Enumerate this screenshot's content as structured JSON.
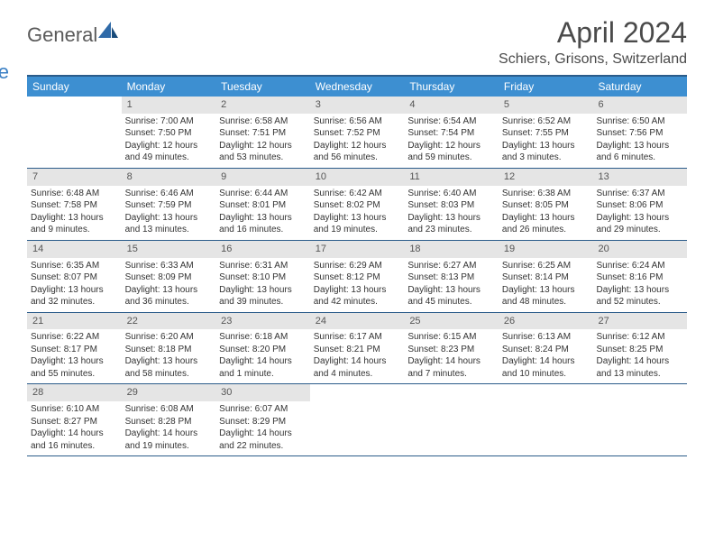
{
  "logo": {
    "text1": "General",
    "text2": "Blue"
  },
  "title": "April 2024",
  "location": "Schiers, Grisons, Switzerland",
  "weekdays": [
    "Sunday",
    "Monday",
    "Tuesday",
    "Wednesday",
    "Thursday",
    "Friday",
    "Saturday"
  ],
  "colors": {
    "header_bar": "#3d8fd1",
    "border": "#2b5c8a",
    "daynum_bg": "#e5e5e5",
    "text": "#333333",
    "logo_blue": "#3a7fc4",
    "logo_gray": "#5a5a5a",
    "bg": "#ffffff"
  },
  "weeks": [
    [
      {
        "n": "",
        "empty": true
      },
      {
        "n": "1",
        "sr": "Sunrise: 7:00 AM",
        "ss": "Sunset: 7:50 PM",
        "d1": "Daylight: 12 hours",
        "d2": "and 49 minutes."
      },
      {
        "n": "2",
        "sr": "Sunrise: 6:58 AM",
        "ss": "Sunset: 7:51 PM",
        "d1": "Daylight: 12 hours",
        "d2": "and 53 minutes."
      },
      {
        "n": "3",
        "sr": "Sunrise: 6:56 AM",
        "ss": "Sunset: 7:52 PM",
        "d1": "Daylight: 12 hours",
        "d2": "and 56 minutes."
      },
      {
        "n": "4",
        "sr": "Sunrise: 6:54 AM",
        "ss": "Sunset: 7:54 PM",
        "d1": "Daylight: 12 hours",
        "d2": "and 59 minutes."
      },
      {
        "n": "5",
        "sr": "Sunrise: 6:52 AM",
        "ss": "Sunset: 7:55 PM",
        "d1": "Daylight: 13 hours",
        "d2": "and 3 minutes."
      },
      {
        "n": "6",
        "sr": "Sunrise: 6:50 AM",
        "ss": "Sunset: 7:56 PM",
        "d1": "Daylight: 13 hours",
        "d2": "and 6 minutes."
      }
    ],
    [
      {
        "n": "7",
        "sr": "Sunrise: 6:48 AM",
        "ss": "Sunset: 7:58 PM",
        "d1": "Daylight: 13 hours",
        "d2": "and 9 minutes."
      },
      {
        "n": "8",
        "sr": "Sunrise: 6:46 AM",
        "ss": "Sunset: 7:59 PM",
        "d1": "Daylight: 13 hours",
        "d2": "and 13 minutes."
      },
      {
        "n": "9",
        "sr": "Sunrise: 6:44 AM",
        "ss": "Sunset: 8:01 PM",
        "d1": "Daylight: 13 hours",
        "d2": "and 16 minutes."
      },
      {
        "n": "10",
        "sr": "Sunrise: 6:42 AM",
        "ss": "Sunset: 8:02 PM",
        "d1": "Daylight: 13 hours",
        "d2": "and 19 minutes."
      },
      {
        "n": "11",
        "sr": "Sunrise: 6:40 AM",
        "ss": "Sunset: 8:03 PM",
        "d1": "Daylight: 13 hours",
        "d2": "and 23 minutes."
      },
      {
        "n": "12",
        "sr": "Sunrise: 6:38 AM",
        "ss": "Sunset: 8:05 PM",
        "d1": "Daylight: 13 hours",
        "d2": "and 26 minutes."
      },
      {
        "n": "13",
        "sr": "Sunrise: 6:37 AM",
        "ss": "Sunset: 8:06 PM",
        "d1": "Daylight: 13 hours",
        "d2": "and 29 minutes."
      }
    ],
    [
      {
        "n": "14",
        "sr": "Sunrise: 6:35 AM",
        "ss": "Sunset: 8:07 PM",
        "d1": "Daylight: 13 hours",
        "d2": "and 32 minutes."
      },
      {
        "n": "15",
        "sr": "Sunrise: 6:33 AM",
        "ss": "Sunset: 8:09 PM",
        "d1": "Daylight: 13 hours",
        "d2": "and 36 minutes."
      },
      {
        "n": "16",
        "sr": "Sunrise: 6:31 AM",
        "ss": "Sunset: 8:10 PM",
        "d1": "Daylight: 13 hours",
        "d2": "and 39 minutes."
      },
      {
        "n": "17",
        "sr": "Sunrise: 6:29 AM",
        "ss": "Sunset: 8:12 PM",
        "d1": "Daylight: 13 hours",
        "d2": "and 42 minutes."
      },
      {
        "n": "18",
        "sr": "Sunrise: 6:27 AM",
        "ss": "Sunset: 8:13 PM",
        "d1": "Daylight: 13 hours",
        "d2": "and 45 minutes."
      },
      {
        "n": "19",
        "sr": "Sunrise: 6:25 AM",
        "ss": "Sunset: 8:14 PM",
        "d1": "Daylight: 13 hours",
        "d2": "and 48 minutes."
      },
      {
        "n": "20",
        "sr": "Sunrise: 6:24 AM",
        "ss": "Sunset: 8:16 PM",
        "d1": "Daylight: 13 hours",
        "d2": "and 52 minutes."
      }
    ],
    [
      {
        "n": "21",
        "sr": "Sunrise: 6:22 AM",
        "ss": "Sunset: 8:17 PM",
        "d1": "Daylight: 13 hours",
        "d2": "and 55 minutes."
      },
      {
        "n": "22",
        "sr": "Sunrise: 6:20 AM",
        "ss": "Sunset: 8:18 PM",
        "d1": "Daylight: 13 hours",
        "d2": "and 58 minutes."
      },
      {
        "n": "23",
        "sr": "Sunrise: 6:18 AM",
        "ss": "Sunset: 8:20 PM",
        "d1": "Daylight: 14 hours",
        "d2": "and 1 minute."
      },
      {
        "n": "24",
        "sr": "Sunrise: 6:17 AM",
        "ss": "Sunset: 8:21 PM",
        "d1": "Daylight: 14 hours",
        "d2": "and 4 minutes."
      },
      {
        "n": "25",
        "sr": "Sunrise: 6:15 AM",
        "ss": "Sunset: 8:23 PM",
        "d1": "Daylight: 14 hours",
        "d2": "and 7 minutes."
      },
      {
        "n": "26",
        "sr": "Sunrise: 6:13 AM",
        "ss": "Sunset: 8:24 PM",
        "d1": "Daylight: 14 hours",
        "d2": "and 10 minutes."
      },
      {
        "n": "27",
        "sr": "Sunrise: 6:12 AM",
        "ss": "Sunset: 8:25 PM",
        "d1": "Daylight: 14 hours",
        "d2": "and 13 minutes."
      }
    ],
    [
      {
        "n": "28",
        "sr": "Sunrise: 6:10 AM",
        "ss": "Sunset: 8:27 PM",
        "d1": "Daylight: 14 hours",
        "d2": "and 16 minutes."
      },
      {
        "n": "29",
        "sr": "Sunrise: 6:08 AM",
        "ss": "Sunset: 8:28 PM",
        "d1": "Daylight: 14 hours",
        "d2": "and 19 minutes."
      },
      {
        "n": "30",
        "sr": "Sunrise: 6:07 AM",
        "ss": "Sunset: 8:29 PM",
        "d1": "Daylight: 14 hours",
        "d2": "and 22 minutes."
      },
      {
        "n": "",
        "empty": true
      },
      {
        "n": "",
        "empty": true
      },
      {
        "n": "",
        "empty": true
      },
      {
        "n": "",
        "empty": true
      }
    ]
  ]
}
